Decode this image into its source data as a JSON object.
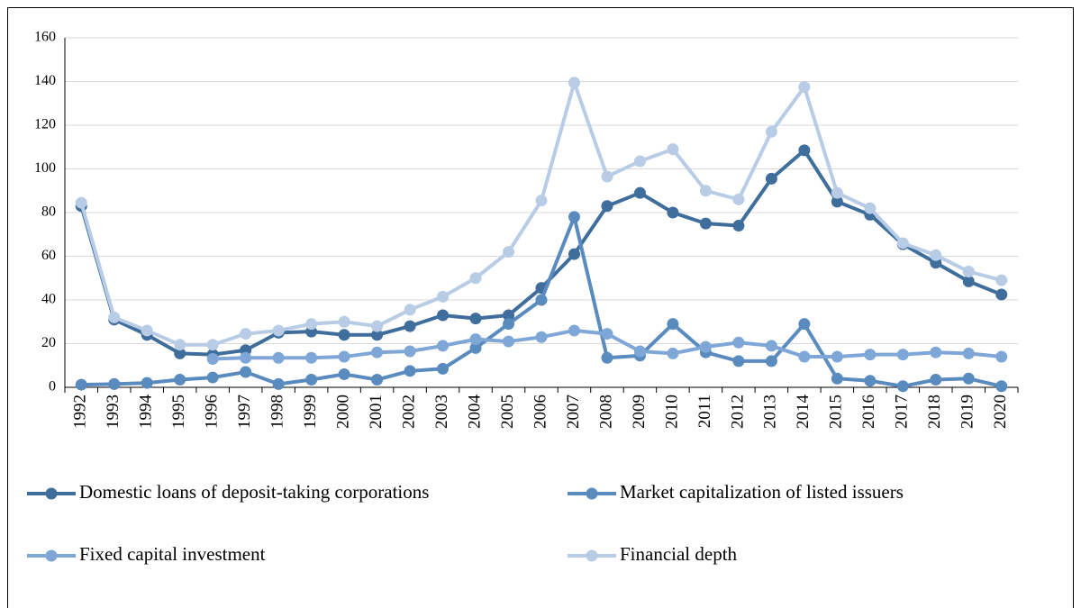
{
  "chart_data": {
    "type": "line",
    "categories": [
      "1992",
      "1993",
      "1994",
      "1995",
      "1996",
      "1997",
      "1998",
      "1999",
      "2000",
      "2001",
      "2002",
      "2003",
      "2004",
      "2005",
      "2006",
      "2007",
      "2008",
      "2009",
      "2010",
      "2011",
      "2012",
      "2013",
      "2014",
      "2015",
      "2016",
      "2017",
      "2018",
      "2019",
      "2020"
    ],
    "series": [
      {
        "name": "Domestic loans of deposit-taking corporations",
        "color": "#3f6e9c",
        "values": [
          83,
          31,
          24,
          15.5,
          15,
          17,
          25,
          25.5,
          24,
          24,
          28,
          33,
          31.5,
          33,
          45.5,
          61,
          83,
          89,
          80,
          75,
          74,
          95.5,
          108.5,
          85,
          79,
          65.5,
          57,
          48.5,
          42.5
        ]
      },
      {
        "name": "Market capitalization of listed issuers",
        "color": "#5a8bbf",
        "values": [
          1.2,
          1.5,
          2,
          3.5,
          4.5,
          7,
          1.5,
          3.5,
          6,
          3.5,
          7.5,
          8.5,
          18,
          29,
          40,
          78,
          13.5,
          14.5,
          29,
          16,
          12,
          12,
          29,
          4,
          3,
          0.5,
          3.5,
          4,
          0.5
        ]
      },
      {
        "name": "Fixed capital investment",
        "color": "#7ea7d8",
        "values": [
          null,
          null,
          null,
          null,
          13,
          13.5,
          13.5,
          13.5,
          14,
          16,
          16.5,
          19,
          22,
          21,
          23,
          26,
          24.5,
          16.5,
          15.5,
          18.5,
          20.5,
          19,
          14,
          14,
          15,
          15,
          16,
          15.5,
          14
        ]
      },
      {
        "name": "Financial depth",
        "color": "#b8cce6",
        "values": [
          84.5,
          32,
          26,
          19.5,
          19.5,
          24.5,
          26,
          29,
          30,
          28,
          35.5,
          41.5,
          50,
          62,
          85.5,
          139.5,
          96.5,
          103.5,
          109,
          90,
          86,
          117,
          137.5,
          89,
          82,
          66,
          60.5,
          53,
          49
        ]
      }
    ],
    "ylim": [
      0,
      160
    ],
    "yticks": [
      0,
      20,
      40,
      60,
      80,
      100,
      120,
      140,
      160
    ],
    "grid": true,
    "legend": "bottom"
  }
}
